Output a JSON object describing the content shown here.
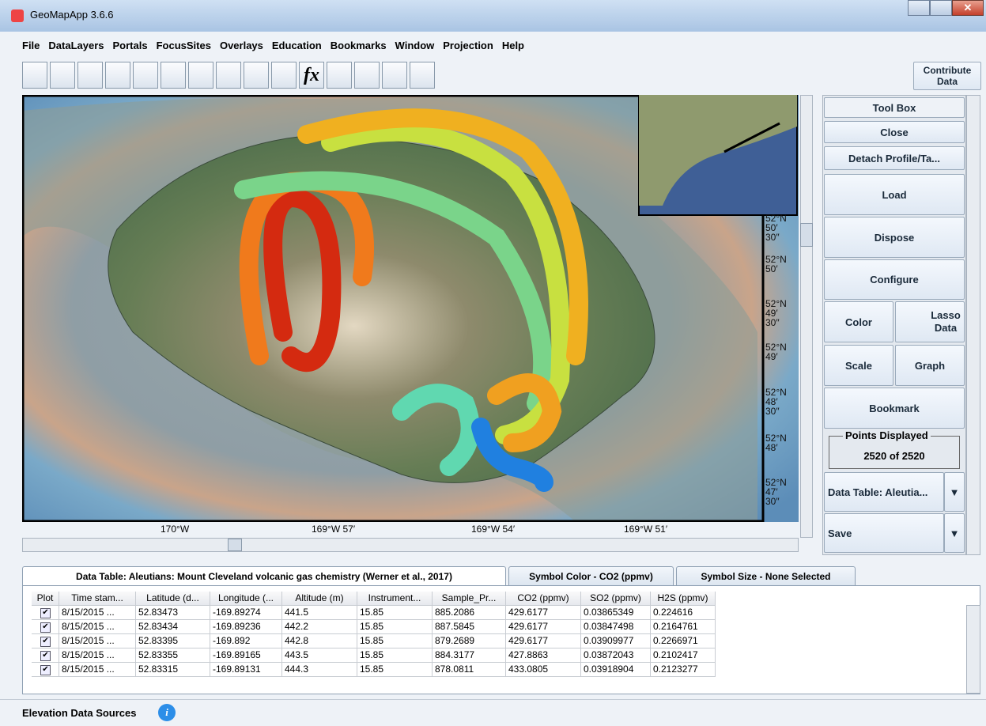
{
  "window": {
    "title": "GeoMapApp 3.6.6"
  },
  "menu": [
    "File",
    "DataLayers",
    "Portals",
    "FocusSites",
    "Overlays",
    "Education",
    "Bookmarks",
    "Window",
    "Projection",
    "Help"
  ],
  "toolbar": {
    "fx": "fx",
    "contribute": "Contribute Data"
  },
  "map": {
    "lat_labels": [
      [
        "52°N",
        "50′",
        "30″"
      ],
      [
        "52°N",
        "50′"
      ],
      [
        "52°N",
        "49′",
        "30″"
      ],
      [
        "52°N",
        "49′"
      ],
      [
        "52°N",
        "48′",
        "30″"
      ],
      [
        "52°N",
        "48′"
      ],
      [
        "52°N",
        "47′",
        "30″"
      ]
    ],
    "lon_labels": [
      "170°W",
      "169°W 57′",
      "169°W 54′",
      "169°W 51′"
    ]
  },
  "toolbox": {
    "title": "Tool Box",
    "close": "Close",
    "detach": "Detach Profile/Ta...",
    "load": "Load",
    "dispose": "Dispose",
    "configure": "Configure",
    "color": "Color",
    "lasso": "Lasso Data",
    "scale": "Scale",
    "graph": "Graph",
    "bookmark": "Bookmark",
    "points_title": "Points Displayed",
    "points": "2520 of 2520",
    "data_table": "Data Table: Aleutia...",
    "save": "Save"
  },
  "tabs": [
    "Data Table: Aleutians: Mount Cleveland volcanic gas chemistry (Werner et al., 2017)",
    "Symbol Color - CO2 (ppmv)",
    "Symbol Size - None Selected"
  ],
  "table": {
    "columns": [
      "Plot",
      "Time stam...",
      "Latitude (d...",
      "Longitude (...",
      "Altitude (m)",
      "Instrument...",
      "Sample_Pr...",
      "CO2 (ppmv)",
      "SO2 (ppmv)",
      "H2S (ppmv)"
    ],
    "rows": [
      [
        "8/15/2015 ...",
        "52.83473",
        "-169.89274",
        "441.5",
        "15.85",
        "885.2086",
        "429.6177",
        "0.03865349",
        "0.224616"
      ],
      [
        "8/15/2015 ...",
        "52.83434",
        "-169.89236",
        "442.2",
        "15.85",
        "887.5845",
        "429.6177",
        "0.03847498",
        "0.2164761"
      ],
      [
        "8/15/2015 ...",
        "52.83395",
        "-169.892",
        "442.8",
        "15.85",
        "879.2689",
        "429.6177",
        "0.03909977",
        "0.2266971"
      ],
      [
        "8/15/2015 ...",
        "52.83355",
        "-169.89165",
        "443.5",
        "15.85",
        "884.3177",
        "427.8863",
        "0.03872043",
        "0.2102417"
      ],
      [
        "8/15/2015 ...",
        "52.83315",
        "-169.89131",
        "444.3",
        "15.85",
        "878.0811",
        "433.0805",
        "0.03918904",
        "0.2123277"
      ]
    ]
  },
  "status": {
    "elevation": "Elevation Data Sources"
  }
}
